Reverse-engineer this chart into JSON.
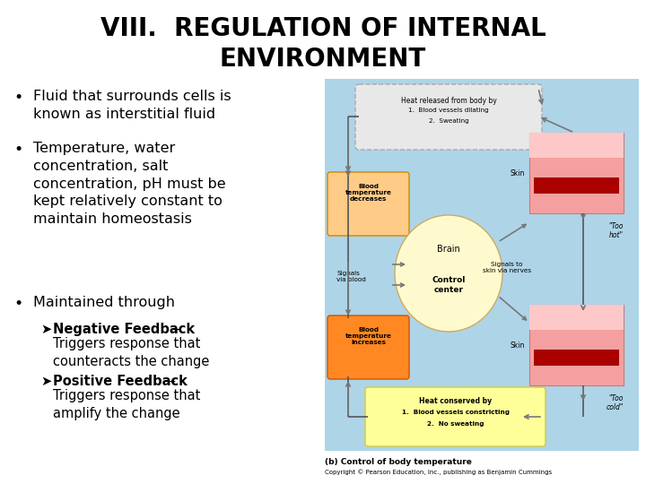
{
  "title_line1": "VIII.  REGULATION OF INTERNAL",
  "title_line2": "ENVIRONMENT",
  "title_fontsize": 20,
  "title_fontweight": "bold",
  "background_color": "#ffffff",
  "bullet_points": [
    "Fluid that surrounds cells is\nknown as interstitial fluid",
    "Temperature, water\nconcentration, salt\nconcentration, pH must be\nkept relatively constant to\nmaintain homeostasis",
    "Maintained through"
  ],
  "text_fontsize": 11.5,
  "sub_fontsize": 10.5,
  "text_color": "#000000",
  "diagram_bg": "#aed4e8",
  "diagram_caption": "(b) Control of body temperature",
  "diagram_copyright": "Copyright © Pearson Education, Inc., publishing as Benjamin Cummings"
}
